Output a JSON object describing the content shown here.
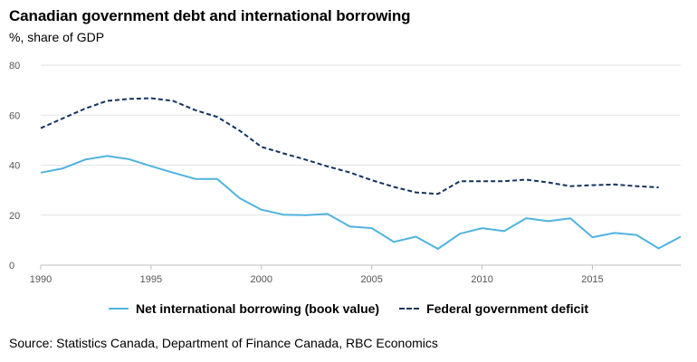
{
  "chart_data": {
    "type": "line",
    "title": "Canadian government debt and international borrowing",
    "subtitle": "%, share of GDP",
    "xlabel": "",
    "ylabel": "%, share of GDP",
    "xlim": [
      1990,
      2019
    ],
    "ylim": [
      0,
      80
    ],
    "y_ticks": [
      0,
      20,
      40,
      60,
      80
    ],
    "x_ticks": [
      1990,
      1995,
      2000,
      2005,
      2010,
      2015
    ],
    "grid": true,
    "legend_position": "bottom-center",
    "series": [
      {
        "name": "Net international borrowing (book value)",
        "style": "solid",
        "color": "#4fb3e0",
        "x": [
          1990,
          1991,
          1992,
          1993,
          1994,
          1995,
          1996,
          1997,
          1998,
          1999,
          2000,
          2001,
          2002,
          2003,
          2004,
          2005,
          2006,
          2007,
          2008,
          2009,
          2010,
          2011,
          2012,
          2013,
          2014,
          2015,
          2016,
          2017,
          2018,
          2019
        ],
        "values": [
          37,
          38.7,
          42.2,
          43.7,
          42.4,
          39.6,
          37,
          34.5,
          34.5,
          26.9,
          22.2,
          20.2,
          20,
          20.5,
          15.5,
          14.8,
          9.3,
          11.4,
          6.5,
          12.6,
          14.8,
          13.6,
          18.8,
          17.6,
          18.7,
          11.2,
          12.9,
          12.1,
          6.7,
          11.4
        ]
      },
      {
        "name": "Federal government deficit",
        "style": "dashed",
        "color": "#13345f",
        "x": [
          1990,
          1991,
          1992,
          1993,
          1994,
          1995,
          1996,
          1997,
          1998,
          1999,
          2000,
          2001,
          2002,
          2003,
          2004,
          2005,
          2006,
          2007,
          2008,
          2009,
          2010,
          2011,
          2012,
          2013,
          2014,
          2015,
          2016,
          2017,
          2018
        ],
        "values": [
          54.8,
          58.7,
          62.6,
          65.7,
          66.5,
          66.8,
          65.7,
          62,
          59.3,
          53.9,
          47.3,
          44.7,
          42.2,
          39.5,
          37.1,
          34,
          31.3,
          29.1,
          28.5,
          33.6,
          33.6,
          33.6,
          34.2,
          33.1,
          31.6,
          32,
          32.3,
          31.6,
          31.1
        ]
      }
    ]
  },
  "source": "Source: Statistics Canada, Department of Finance Canada, RBC Economics"
}
